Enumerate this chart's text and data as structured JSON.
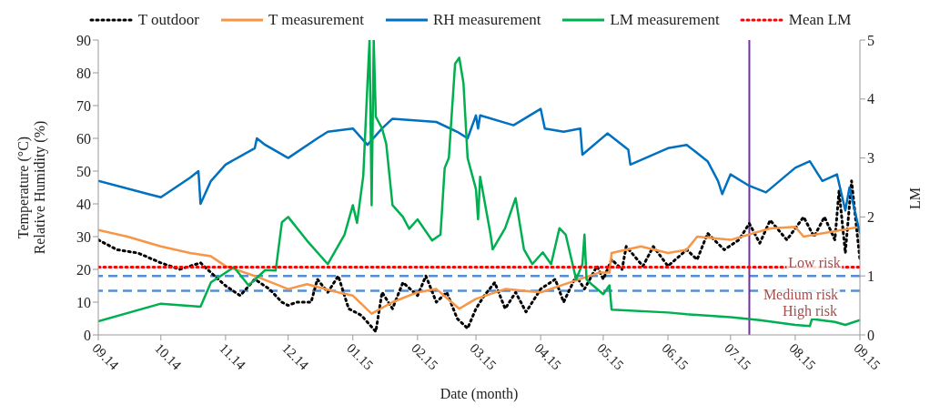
{
  "chart_data": {
    "type": "line",
    "xlabel": "Date (month)",
    "ylabel": "Temperature (°C)\nRelative Humidity (%)",
    "y2label": "LM",
    "xlim": [
      "2014-09-01",
      "2015-09-01"
    ],
    "xticks": [
      {
        "value": "2014-09-01",
        "label": "09.14"
      },
      {
        "value": "2014-10-01",
        "label": "10.14"
      },
      {
        "value": "2014-11-01",
        "label": "11.14"
      },
      {
        "value": "2014-12-01",
        "label": "12.14"
      },
      {
        "value": "2015-01-01",
        "label": "01.15"
      },
      {
        "value": "2015-02-01",
        "label": "02.15"
      },
      {
        "value": "2015-03-01",
        "label": "03.15"
      },
      {
        "value": "2015-04-01",
        "label": "04.15"
      },
      {
        "value": "2015-05-01",
        "label": "05.15"
      },
      {
        "value": "2015-06-01",
        "label": "06.15"
      },
      {
        "value": "2015-07-01",
        "label": "07.15"
      },
      {
        "value": "2015-08-01",
        "label": "08.15"
      },
      {
        "value": "2015-09-01",
        "label": "09.15"
      }
    ],
    "ylim": [
      0,
      90
    ],
    "yticks": [
      0,
      10,
      20,
      30,
      40,
      50,
      60,
      70,
      80,
      90
    ],
    "y2lim": [
      0,
      5
    ],
    "y2ticks": [
      0,
      1,
      2,
      3,
      4,
      5
    ],
    "grid": false,
    "legend": "top",
    "marker": "none",
    "series": [
      {
        "name": "T outdoor",
        "color": "#000000",
        "line_style": "dotted",
        "x": [
          "2014-09-01",
          "2014-09-10",
          "2014-09-20",
          "2014-10-01",
          "2014-10-10",
          "2014-10-20",
          "2014-10-25",
          "2014-11-01",
          "2014-11-08",
          "2014-11-15",
          "2014-11-22",
          "2014-11-28",
          "2014-12-01",
          "2014-12-05",
          "2014-12-12",
          "2014-12-15",
          "2014-12-20",
          "2014-12-25",
          "2014-12-30",
          "2015-01-05",
          "2015-01-12",
          "2015-01-15",
          "2015-01-20",
          "2015-01-25",
          "2015-02-01",
          "2015-02-05",
          "2015-02-10",
          "2015-02-15",
          "2015-02-20",
          "2015-02-25",
          "2015-03-01",
          "2015-03-05",
          "2015-03-10",
          "2015-03-15",
          "2015-03-20",
          "2015-03-25",
          "2015-04-01",
          "2015-04-08",
          "2015-04-12",
          "2015-04-18",
          "2015-04-22",
          "2015-04-28",
          "2015-05-01",
          "2015-05-05",
          "2015-05-10",
          "2015-05-12",
          "2015-05-20",
          "2015-05-25",
          "2015-06-01",
          "2015-06-10",
          "2015-06-15",
          "2015-06-20",
          "2015-06-28",
          "2015-07-05",
          "2015-07-10",
          "2015-07-15",
          "2015-07-20",
          "2015-07-28",
          "2015-08-05",
          "2015-08-10",
          "2015-08-15",
          "2015-08-20",
          "2015-08-22",
          "2015-08-25",
          "2015-08-28",
          "2015-09-01"
        ],
        "values": [
          29,
          26,
          25,
          22,
          20,
          22,
          19,
          15,
          12,
          17,
          14,
          10,
          9,
          10,
          10,
          17,
          13,
          18,
          8,
          6,
          1,
          13,
          8,
          16,
          12,
          18,
          10,
          13,
          5,
          2,
          8,
          12,
          16,
          8,
          13,
          7,
          14,
          17,
          10,
          18,
          14,
          21,
          17,
          23,
          20,
          27,
          21,
          27,
          21,
          26,
          23,
          31,
          26,
          29,
          34,
          28,
          35,
          29,
          36,
          30,
          36,
          29,
          44,
          25,
          47,
          23
        ]
      },
      {
        "name": "T measurement",
        "color": "#f79646",
        "line_style": "solid",
        "x": [
          "2014-09-01",
          "2014-09-15",
          "2014-10-01",
          "2014-10-15",
          "2014-10-25",
          "2014-11-01",
          "2014-11-15",
          "2014-12-01",
          "2014-12-10",
          "2014-12-25",
          "2015-01-01",
          "2015-01-10",
          "2015-01-20",
          "2015-02-01",
          "2015-02-10",
          "2015-02-21",
          "2015-03-01",
          "2015-03-15",
          "2015-04-01",
          "2015-04-15",
          "2015-04-29",
          "2015-05-04",
          "2015-05-05",
          "2015-05-19",
          "2015-06-01",
          "2015-06-10",
          "2015-06-15",
          "2015-07-01",
          "2015-07-20",
          "2015-08-01",
          "2015-08-05",
          "2015-09-01"
        ],
        "values": [
          32,
          30,
          27,
          25,
          24,
          21,
          18,
          14,
          15.5,
          13,
          12,
          6.5,
          10,
          13,
          14,
          8,
          11,
          14,
          13,
          16,
          19,
          19,
          25,
          27,
          25,
          26,
          30,
          29,
          32.5,
          33,
          30,
          33
        ]
      },
      {
        "name": "RH measurement",
        "color": "#0070c0",
        "line_style": "solid",
        "x": [
          "2014-09-01",
          "2014-09-25",
          "2014-10-01",
          "2014-10-15",
          "2014-10-19",
          "2014-10-20",
          "2014-10-25",
          "2014-11-01",
          "2014-11-15",
          "2014-11-16",
          "2014-11-20",
          "2014-12-01",
          "2014-12-15",
          "2014-12-20",
          "2015-01-01",
          "2015-01-08",
          "2015-01-15",
          "2015-01-20",
          "2015-02-10",
          "2015-02-20",
          "2015-02-25",
          "2015-03-01",
          "2015-03-02",
          "2015-03-03",
          "2015-03-19",
          "2015-04-01",
          "2015-04-03",
          "2015-04-12",
          "2015-04-20",
          "2015-04-21",
          "2015-05-03",
          "2015-05-13",
          "2015-05-14",
          "2015-06-01",
          "2015-06-10",
          "2015-06-20",
          "2015-06-25",
          "2015-06-27",
          "2015-07-01",
          "2015-07-10",
          "2015-07-18",
          "2015-08-01",
          "2015-08-08",
          "2015-08-14",
          "2015-08-21",
          "2015-08-25",
          "2015-08-27",
          "2015-09-01"
        ],
        "values": [
          47,
          43,
          42,
          48,
          50,
          40,
          47,
          52,
          57,
          60,
          58,
          54,
          60,
          62,
          63,
          58,
          63,
          66,
          65,
          62,
          60,
          67,
          63,
          67,
          64,
          69,
          63,
          62,
          63,
          55,
          61.5,
          56.5,
          52,
          57,
          58,
          53,
          47,
          43,
          49,
          45.5,
          43.5,
          51,
          53,
          47,
          49,
          38,
          45,
          31
        ]
      },
      {
        "name": "LM measurement",
        "color": "#00b050",
        "line_style": "solid",
        "axis": "y2",
        "x": [
          "2014-09-01",
          "2014-10-01",
          "2014-10-20",
          "2014-10-25",
          "2014-11-05",
          "2014-11-12",
          "2014-11-20",
          "2014-11-25",
          "2014-11-28",
          "2014-12-01",
          "2014-12-10",
          "2014-12-20",
          "2014-12-28",
          "2015-01-01",
          "2015-01-03",
          "2015-01-06",
          "2015-01-08",
          "2015-01-09",
          "2015-01-10",
          "2015-01-11",
          "2015-01-12",
          "2015-01-15",
          "2015-01-17",
          "2015-01-20",
          "2015-01-25",
          "2015-01-28",
          "2015-02-01",
          "2015-02-08",
          "2015-02-12",
          "2015-02-14",
          "2015-02-16",
          "2015-02-19",
          "2015-02-21",
          "2015-02-23",
          "2015-02-25",
          "2015-03-01",
          "2015-03-02",
          "2015-03-03",
          "2015-03-08",
          "2015-03-09",
          "2015-03-15",
          "2015-03-20",
          "2015-03-24",
          "2015-03-28",
          "2015-04-02",
          "2015-04-06",
          "2015-04-10",
          "2015-04-13",
          "2015-04-18",
          "2015-04-21",
          "2015-04-22",
          "2015-04-23",
          "2015-04-26",
          "2015-05-01",
          "2015-05-04",
          "2015-05-05",
          "2015-06-01",
          "2015-06-10",
          "2015-07-01",
          "2015-07-15",
          "2015-08-01",
          "2015-08-08",
          "2015-08-09",
          "2015-08-20",
          "2015-08-25",
          "2015-09-01"
        ],
        "values": [
          0.23,
          0.53,
          0.48,
          0.89,
          1.15,
          0.84,
          1.1,
          1.09,
          1.91,
          2.0,
          1.6,
          1.2,
          1.7,
          2.2,
          1.9,
          2.7,
          4.26,
          5,
          2.2,
          5,
          3.7,
          3.5,
          3.24,
          2.2,
          2.0,
          1.8,
          1.96,
          1.6,
          1.7,
          2.83,
          3.0,
          4.6,
          4.7,
          4.27,
          3.0,
          2.47,
          1.96,
          2.68,
          1.7,
          1.45,
          1.81,
          2.32,
          1.45,
          1.2,
          1.4,
          1.2,
          1.81,
          1.7,
          0.94,
          1.2,
          1.7,
          0.94,
          0.84,
          0.69,
          0.84,
          0.43,
          0.38,
          0.35,
          0.3,
          0.25,
          0.17,
          0.15,
          0.27,
          0.22,
          0.17,
          0.25
        ]
      },
      {
        "name": "Mean LM",
        "color": "#ff0000",
        "line_style": "dotted",
        "axis": "y2",
        "x": [
          "2014-09-01",
          "2015-09-01"
        ],
        "values": [
          1.15,
          1.15
        ]
      }
    ],
    "ref_lines": [
      {
        "axis": "y2",
        "value": 1,
        "color": "#558ed5",
        "line_style": "dashed"
      },
      {
        "axis": "y2",
        "value": 0.75,
        "color": "#558ed5",
        "line_style": "dashed"
      },
      {
        "axis": "x",
        "value": "2015-07-10",
        "color": "#7030a0",
        "line_style": "solid"
      }
    ],
    "annotations": [
      "Low risk",
      "Medium risk",
      "High risk"
    ]
  }
}
